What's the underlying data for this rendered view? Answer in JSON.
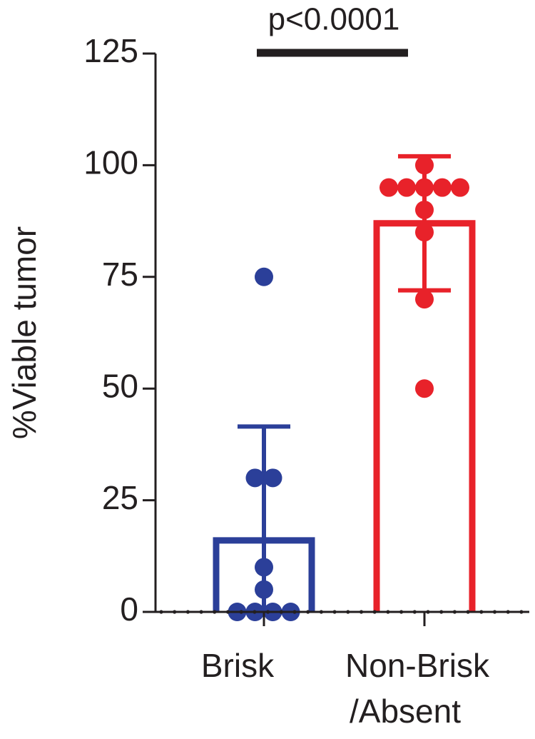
{
  "chart_data": {
    "type": "bar",
    "y_label": "%Viable tumor",
    "annotation": "p<0.0001",
    "categories": [
      [
        "Brisk"
      ],
      [
        "Non-Brisk",
        "/Absent"
      ]
    ],
    "ylim": [
      0,
      125
    ],
    "yticks": [
      0,
      25,
      50,
      75,
      100,
      125
    ],
    "series": [
      {
        "color": "#2b3f99",
        "mean": 16,
        "sd": 25.5,
        "points": [
          75,
          30,
          30,
          10,
          5,
          0,
          0,
          0,
          0
        ]
      },
      {
        "color": "#e8222a",
        "mean": 87,
        "sd": 15,
        "points": [
          100,
          95,
          95,
          95,
          95,
          95,
          90,
          85,
          70,
          50
        ]
      }
    ]
  }
}
